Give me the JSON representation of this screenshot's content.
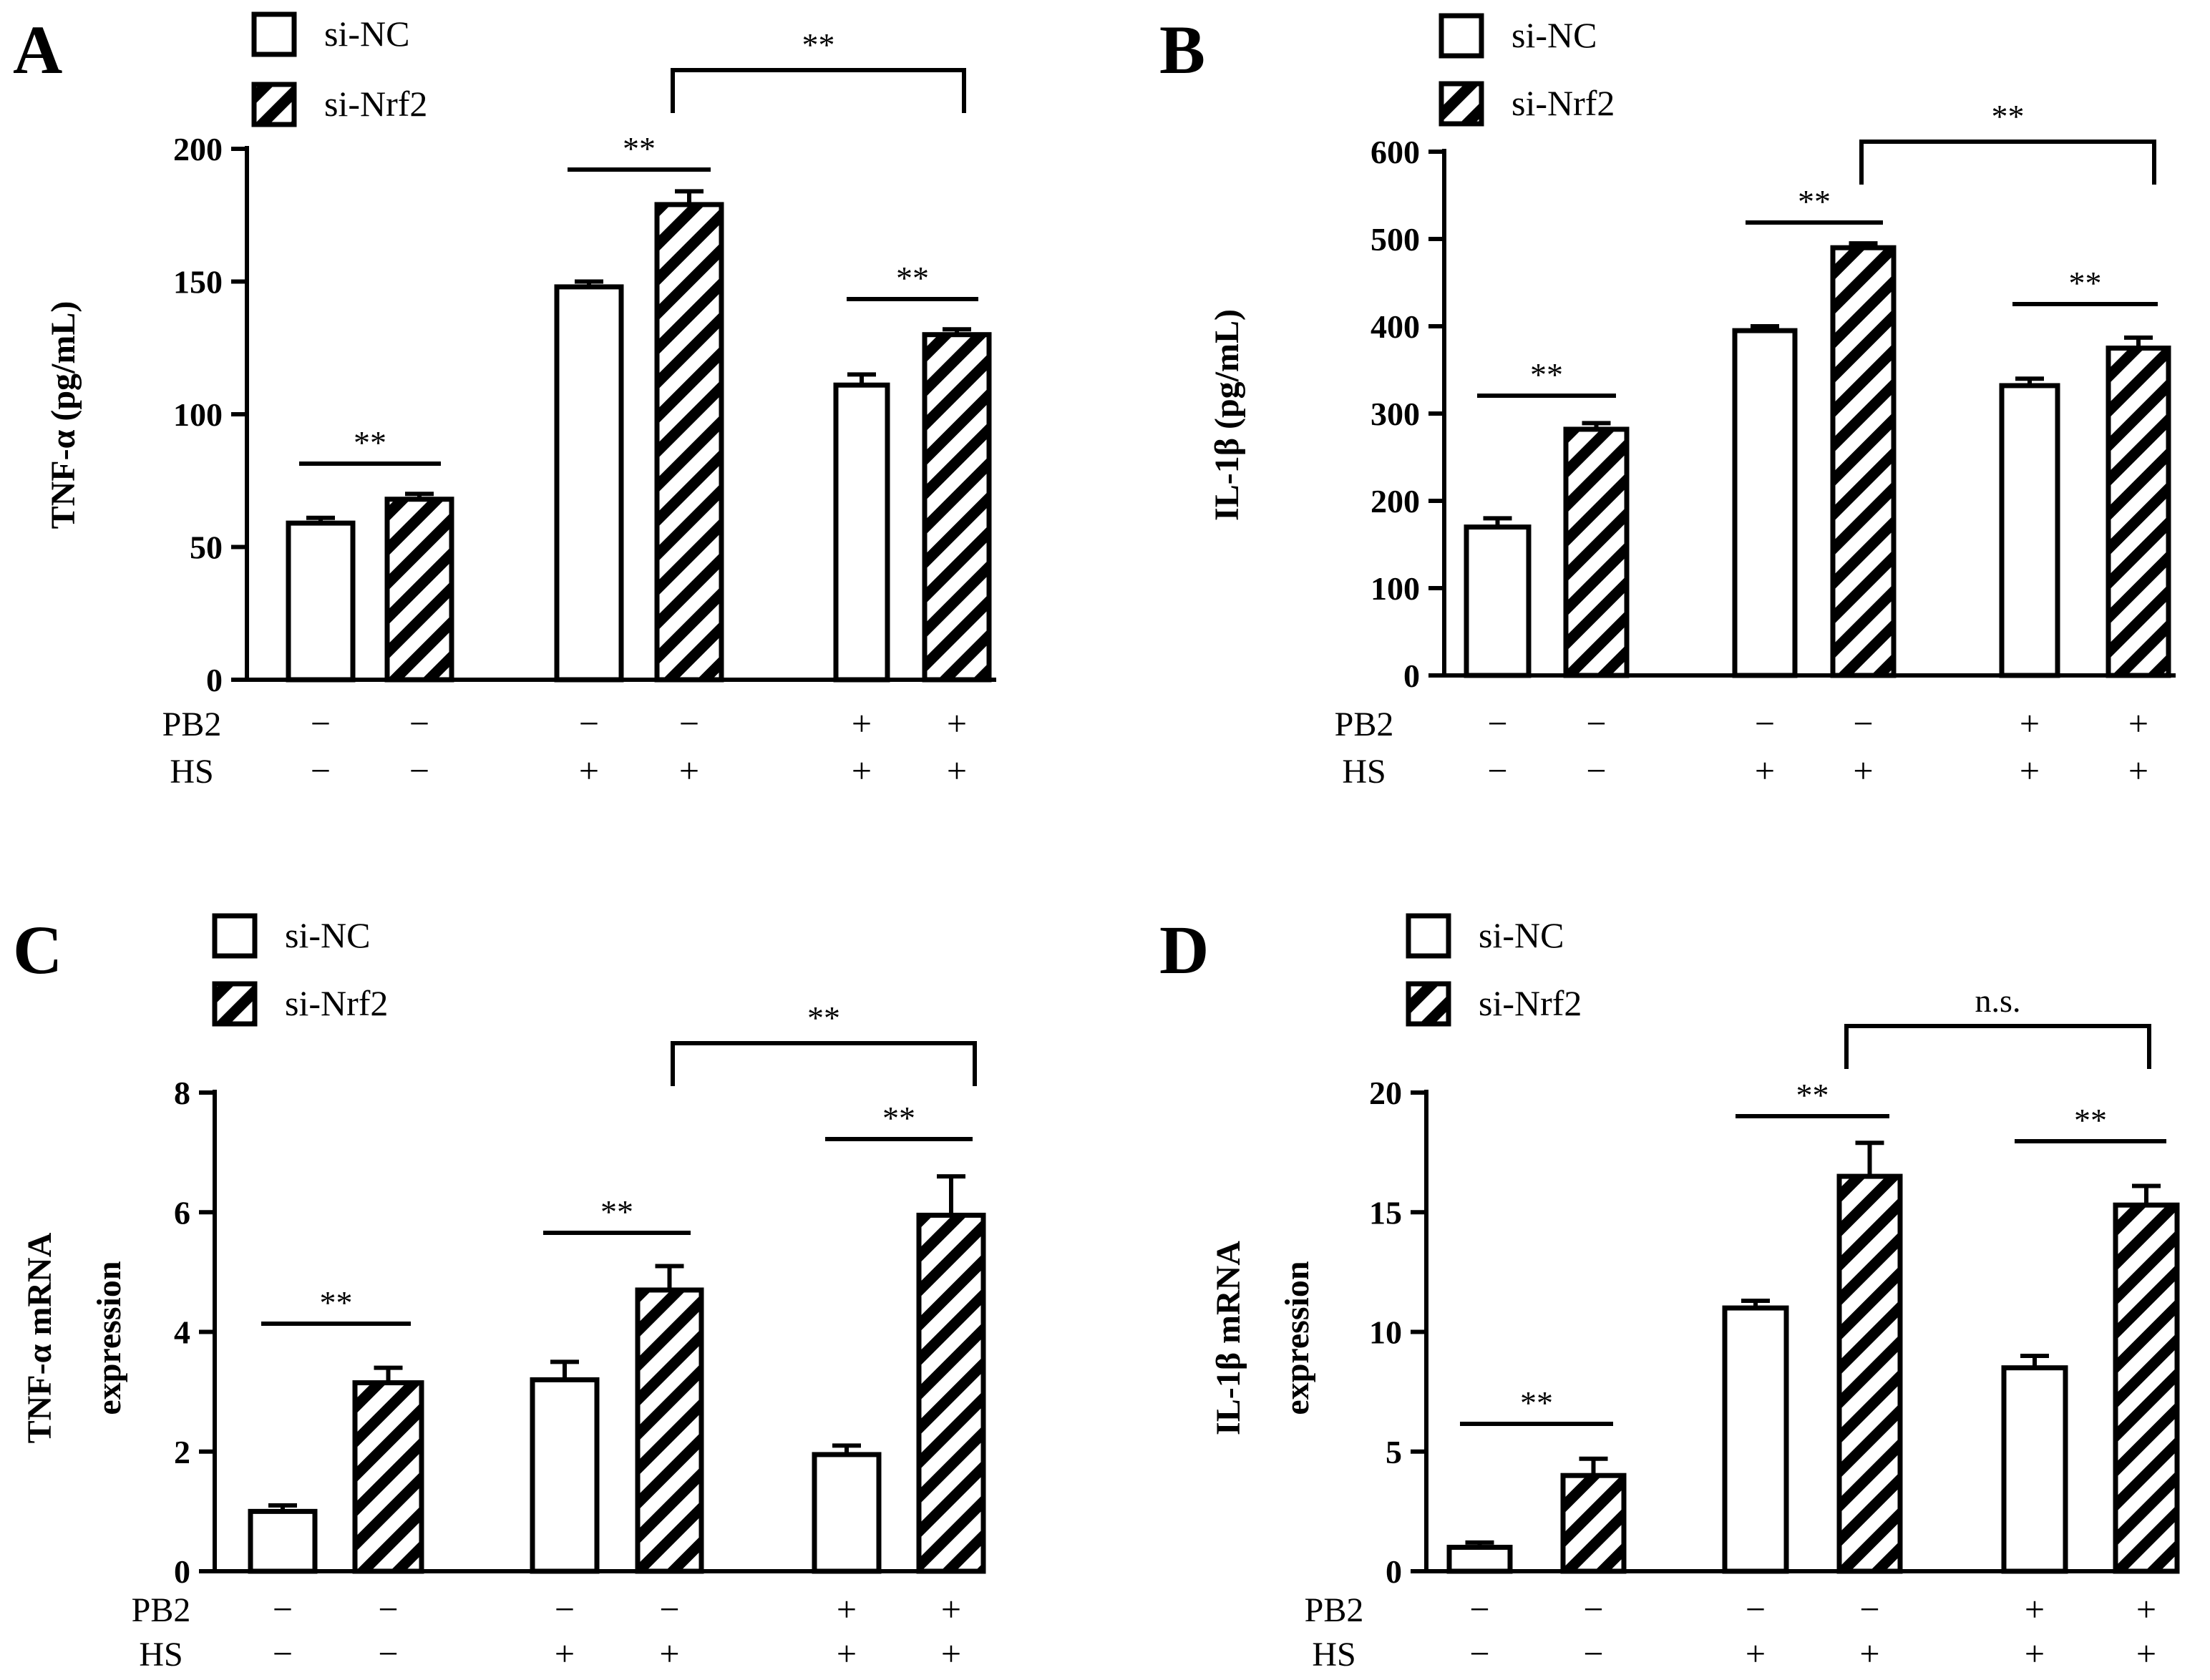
{
  "chart_data": [
    {
      "type": "bar",
      "panel": "A",
      "ylabel": "TNF-α (pg/mL)",
      "ylim": [
        0,
        200
      ],
      "yticks": [
        0,
        50,
        100,
        150,
        200
      ],
      "legend": [
        {
          "name": "si-NC",
          "pattern": "open"
        },
        {
          "name": "si-Nrf2",
          "pattern": "hatched"
        }
      ],
      "groups": [
        {
          "PB2": "−",
          "HS": "−"
        },
        {
          "PB2": "−",
          "HS": "+"
        },
        {
          "PB2": "+",
          "HS": "+"
        }
      ],
      "series": [
        {
          "name": "si-NC",
          "values": [
            59,
            148,
            111
          ],
          "errors": [
            2,
            2,
            4
          ]
        },
        {
          "name": "si-Nrf2",
          "values": [
            68,
            179,
            130
          ],
          "errors": [
            2,
            5,
            2
          ]
        }
      ],
      "condition_labels": [
        "PB2",
        "HS"
      ],
      "significance": [
        {
          "type": "within",
          "group": 0,
          "label": "**"
        },
        {
          "type": "within",
          "group": 1,
          "label": "**"
        },
        {
          "type": "within",
          "group": 2,
          "label": "**"
        },
        {
          "type": "between",
          "from_group": 1,
          "to_group": 2,
          "label": "**"
        }
      ]
    },
    {
      "type": "bar",
      "panel": "B",
      "ylabel": "IL-1β (pg/mL)",
      "ylim": [
        0,
        600
      ],
      "yticks": [
        0,
        100,
        200,
        300,
        400,
        500,
        600
      ],
      "legend": [
        {
          "name": "si-NC",
          "pattern": "open"
        },
        {
          "name": "si-Nrf2",
          "pattern": "hatched"
        }
      ],
      "groups": [
        {
          "PB2": "−",
          "HS": "−"
        },
        {
          "PB2": "−",
          "HS": "+"
        },
        {
          "PB2": "+",
          "HS": "+"
        }
      ],
      "series": [
        {
          "name": "si-NC",
          "values": [
            170,
            395,
            332
          ],
          "errors": [
            10,
            5,
            8
          ]
        },
        {
          "name": "si-Nrf2",
          "values": [
            282,
            490,
            375
          ],
          "errors": [
            7,
            5,
            12
          ]
        }
      ],
      "condition_labels": [
        "PB2",
        "HS"
      ],
      "significance": [
        {
          "type": "within",
          "group": 0,
          "label": "**"
        },
        {
          "type": "within",
          "group": 1,
          "label": "**"
        },
        {
          "type": "within",
          "group": 2,
          "label": "**"
        },
        {
          "type": "between",
          "from_group": 1,
          "to_group": 2,
          "label": "**"
        }
      ]
    },
    {
      "type": "bar",
      "panel": "C",
      "ylabel": "TNF-α mRNA",
      "ylabel2": "expression",
      "ylim": [
        0,
        8
      ],
      "yticks": [
        0,
        2,
        4,
        6,
        8
      ],
      "legend": [
        {
          "name": "si-NC",
          "pattern": "open"
        },
        {
          "name": "si-Nrf2",
          "pattern": "hatched"
        }
      ],
      "groups": [
        {
          "PB2": "−",
          "HS": "−"
        },
        {
          "PB2": "−",
          "HS": "+"
        },
        {
          "PB2": "+",
          "HS": "+"
        }
      ],
      "series": [
        {
          "name": "si-NC",
          "values": [
            1.0,
            3.2,
            1.95
          ],
          "errors": [
            0.1,
            0.3,
            0.15
          ]
        },
        {
          "name": "si-Nrf2",
          "values": [
            3.15,
            4.7,
            5.95
          ],
          "errors": [
            0.25,
            0.4,
            0.65
          ]
        }
      ],
      "condition_labels": [
        "PB2",
        "HS"
      ],
      "significance": [
        {
          "type": "within",
          "group": 0,
          "label": "**"
        },
        {
          "type": "within",
          "group": 1,
          "label": "**"
        },
        {
          "type": "within",
          "group": 2,
          "label": "**"
        },
        {
          "type": "between",
          "from_group": 1,
          "to_group": 2,
          "label": "**"
        }
      ]
    },
    {
      "type": "bar",
      "panel": "D",
      "ylabel": "IL-1β mRNA",
      "ylabel2": "expression",
      "ylim": [
        0,
        20
      ],
      "yticks": [
        0,
        5,
        10,
        15,
        20
      ],
      "legend": [
        {
          "name": "si-NC",
          "pattern": "open"
        },
        {
          "name": "si-Nrf2",
          "pattern": "hatched"
        }
      ],
      "groups": [
        {
          "PB2": "−",
          "HS": "−"
        },
        {
          "PB2": "−",
          "HS": "+"
        },
        {
          "PB2": "+",
          "HS": "+"
        }
      ],
      "series": [
        {
          "name": "si-NC",
          "values": [
            1.0,
            11.0,
            8.5
          ],
          "errors": [
            0.2,
            0.3,
            0.5
          ]
        },
        {
          "name": "si-Nrf2",
          "values": [
            4.0,
            16.5,
            15.3
          ],
          "errors": [
            0.7,
            1.4,
            0.8
          ]
        }
      ],
      "condition_labels": [
        "PB2",
        "HS"
      ],
      "significance": [
        {
          "type": "within",
          "group": 0,
          "label": "**"
        },
        {
          "type": "within",
          "group": 1,
          "label": "**"
        },
        {
          "type": "within",
          "group": 2,
          "label": "**"
        },
        {
          "type": "between",
          "from_group": 1,
          "to_group": 2,
          "label": "n.s."
        }
      ]
    }
  ]
}
